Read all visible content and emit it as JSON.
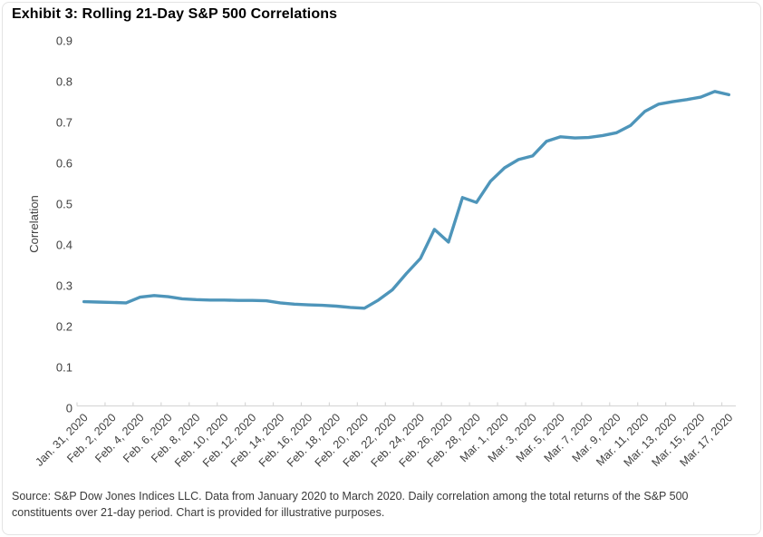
{
  "title": "Exhibit 3: Rolling 21-Day S&P 500 Correlations",
  "source_note": "Source: S&P Dow Jones Indices LLC. Data from January 2020 to March 2020. Daily correlation among the total returns of the S&P 500 constituents over 21-day period. Chart is provided for illustrative purposes.",
  "colors": {
    "line": "#4E95BA",
    "axis": "#D8D8D8",
    "text": "#404040",
    "title_text": "#000000",
    "frame_border": "#E3E3E3",
    "background": "#FFFFFF"
  },
  "chart_data": {
    "type": "line",
    "title": "Exhibit 3: Rolling 21-Day S&P 500 Correlations",
    "xlabel": "",
    "ylabel": "Correlation",
    "ylim": [
      0,
      0.9
    ],
    "y_ticks": [
      "0.9",
      "0.8",
      "0.7",
      "0.6",
      "0.5",
      "0.4",
      "0.3",
      "0.2",
      "0.1",
      "0"
    ],
    "grid": false,
    "legend": "none",
    "x_tick_interval": 2,
    "x_tick_labels": [
      "Jan. 31, 2020",
      "Feb. 2, 2020",
      "Feb. 4, 2020",
      "Feb. 6, 2020",
      "Feb. 8, 2020",
      "Feb. 10, 2020",
      "Feb. 12, 2020",
      "Feb. 14, 2020",
      "Feb. 16, 2020",
      "Feb. 18, 2020",
      "Feb. 20, 2020",
      "Feb. 22, 2020",
      "Feb. 24, 2020",
      "Feb. 26, 2020",
      "Feb. 28, 2020",
      "Mar. 1, 2020",
      "Mar. 3, 2020",
      "Mar. 5, 2020",
      "Mar. 7, 2020",
      "Mar. 9, 2020",
      "Mar. 11, 2020",
      "Mar. 13, 2020",
      "Mar. 15, 2020",
      "Mar. 17, 2020"
    ],
    "x": [
      "Jan. 31, 2020",
      "Feb. 1, 2020",
      "Feb. 2, 2020",
      "Feb. 3, 2020",
      "Feb. 4, 2020",
      "Feb. 5, 2020",
      "Feb. 6, 2020",
      "Feb. 7, 2020",
      "Feb. 8, 2020",
      "Feb. 9, 2020",
      "Feb. 10, 2020",
      "Feb. 11, 2020",
      "Feb. 12, 2020",
      "Feb. 13, 2020",
      "Feb. 14, 2020",
      "Feb. 15, 2020",
      "Feb. 16, 2020",
      "Feb. 17, 2020",
      "Feb. 18, 2020",
      "Feb. 19, 2020",
      "Feb. 20, 2020",
      "Feb. 21, 2020",
      "Feb. 22, 2020",
      "Feb. 23, 2020",
      "Feb. 24, 2020",
      "Feb. 25, 2020",
      "Feb. 26, 2020",
      "Feb. 27, 2020",
      "Feb. 28, 2020",
      "Feb. 29, 2020",
      "Mar. 1, 2020",
      "Mar. 2, 2020",
      "Mar. 3, 2020",
      "Mar. 4, 2020",
      "Mar. 5, 2020",
      "Mar. 6, 2020",
      "Mar. 7, 2020",
      "Mar. 8, 2020",
      "Mar. 9, 2020",
      "Mar. 10, 2020",
      "Mar. 11, 2020",
      "Mar. 12, 2020",
      "Mar. 13, 2020",
      "Mar. 14, 2020",
      "Mar. 15, 2020",
      "Mar. 16, 2020",
      "Mar. 17, 2020"
    ],
    "values": [
      0.261,
      0.26,
      0.259,
      0.258,
      0.272,
      0.276,
      0.273,
      0.268,
      0.266,
      0.265,
      0.265,
      0.264,
      0.264,
      0.263,
      0.258,
      0.255,
      0.253,
      0.252,
      0.25,
      0.247,
      0.245,
      0.265,
      0.29,
      0.33,
      0.367,
      0.438,
      0.407,
      0.516,
      0.504,
      0.556,
      0.589,
      0.609,
      0.618,
      0.654,
      0.665,
      0.662,
      0.663,
      0.668,
      0.675,
      0.693,
      0.727,
      0.745,
      0.751,
      0.756,
      0.762,
      0.776,
      0.768
    ]
  }
}
